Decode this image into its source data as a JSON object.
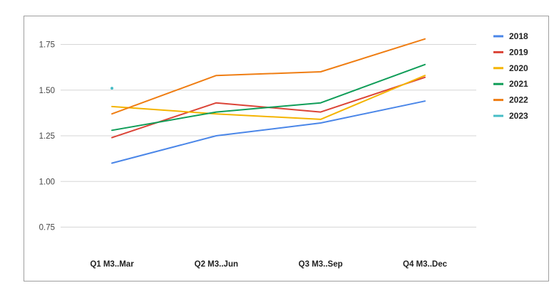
{
  "chart_data": {
    "type": "line",
    "title": "",
    "xlabel": "",
    "ylabel": "",
    "categories": [
      "Q1 M3..Mar",
      "Q2 M3..Jun",
      "Q3 M3..Sep",
      "Q4 M3..Dec"
    ],
    "y_ticks": [
      "0.75",
      "1.00",
      "1.25",
      "1.50",
      "1.75"
    ],
    "ylim": [
      0.65,
      1.85
    ],
    "grid": true,
    "legend_position": "right",
    "series": [
      {
        "name": "2018",
        "color": "#4a86e8",
        "values": [
          1.1,
          1.25,
          1.32,
          1.44
        ]
      },
      {
        "name": "2019",
        "color": "#db4437",
        "values": [
          1.24,
          1.43,
          1.38,
          1.57
        ]
      },
      {
        "name": "2020",
        "color": "#f4b400",
        "values": [
          1.41,
          1.37,
          1.34,
          1.58
        ]
      },
      {
        "name": "2021",
        "color": "#0f9d58",
        "values": [
          1.28,
          1.38,
          1.43,
          1.64
        ]
      },
      {
        "name": "2022",
        "color": "#ef7d12",
        "values": [
          1.37,
          1.58,
          1.6,
          1.78
        ]
      },
      {
        "name": "2023",
        "color": "#46bdc6",
        "values": [
          1.51,
          null,
          null,
          null
        ]
      }
    ]
  }
}
